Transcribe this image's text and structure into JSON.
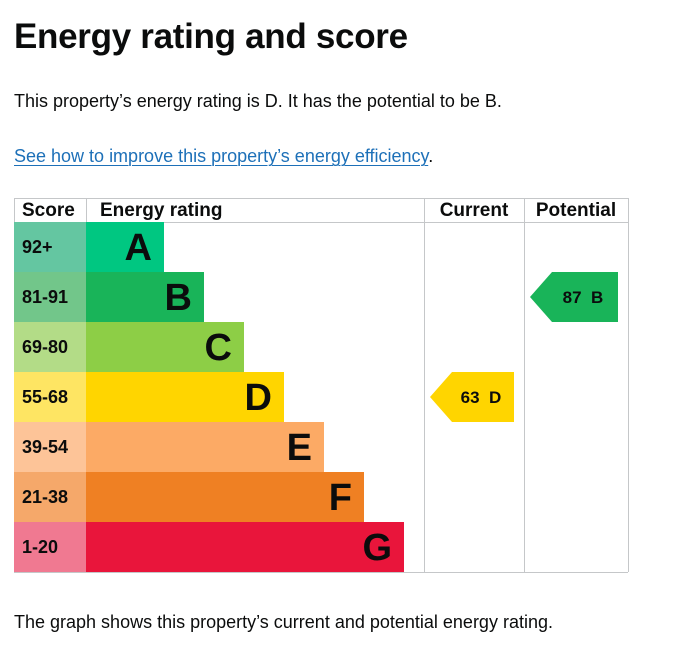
{
  "heading": "Energy rating and score",
  "summary": "This property’s energy rating is D. It has the potential to be B.",
  "improve_link": "See how to improve this property’s energy efficiency",
  "improve_link_suffix": ".",
  "caption": "The graph shows this property’s current and potential energy rating.",
  "chart_data": {
    "type": "bar",
    "columns": [
      "Score",
      "Energy rating",
      "Current",
      "Potential"
    ],
    "bands": [
      {
        "score": "92+",
        "rating": "A",
        "color": "#00c781",
        "score_color": "#64c6a1"
      },
      {
        "score": "81-91",
        "rating": "B",
        "color": "#19b459",
        "score_color": "#72c68a"
      },
      {
        "score": "69-80",
        "rating": "C",
        "color": "#8dce46",
        "score_color": "#b3dc87"
      },
      {
        "score": "55-68",
        "rating": "D",
        "color": "#ffd500",
        "score_color": "#fee563"
      },
      {
        "score": "39-54",
        "rating": "E",
        "color": "#fcaa65",
        "score_color": "#fdc498"
      },
      {
        "score": "21-38",
        "rating": "F",
        "color": "#ef8023",
        "score_color": "#f5a86a"
      },
      {
        "score": "1-20",
        "rating": "G",
        "color": "#e9153b",
        "score_color": "#f07991"
      }
    ],
    "current": {
      "score": 63,
      "rating": "D",
      "label": "63  D",
      "color": "#ffd500"
    },
    "potential": {
      "score": 87,
      "rating": "B",
      "label": "87  B",
      "color": "#19b459"
    }
  }
}
